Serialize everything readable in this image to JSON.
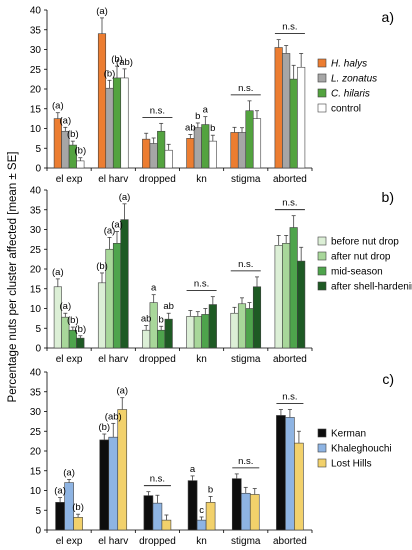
{
  "figure": {
    "ylabel": "Percentage nuts per cluster affected [mean ± SE]"
  },
  "chart_data": [
    {
      "panel_label": "a)",
      "type": "bar",
      "categories": [
        "el exp",
        "el harv",
        "dropped",
        "kn",
        "stigma",
        "aborted"
      ],
      "ylim": [
        0,
        40
      ],
      "yticks": [
        0,
        5,
        10,
        15,
        20,
        25,
        30,
        35,
        40
      ],
      "legend_position": "right",
      "series": [
        {
          "name": "H. halys",
          "italic": true,
          "color": "#ec7d31",
          "values": [
            12.5,
            34,
            7.3,
            7.5,
            9,
            30.5
          ],
          "errors": [
            1.5,
            4,
            1.5,
            1.0,
            1.3,
            2.0
          ]
        },
        {
          "name": "L. zonatus",
          "italic": true,
          "color": "#a6a6a6",
          "values": [
            9.3,
            20.2,
            6.2,
            10.2,
            9,
            29
          ],
          "errors": [
            1.0,
            2.0,
            1.4,
            1.2,
            1.2,
            2.0
          ]
        },
        {
          "name": "C. hilaris",
          "italic": true,
          "color": "#53a33f",
          "values": [
            5.8,
            22.8,
            9.3,
            11,
            14.5,
            22.5
          ],
          "errors": [
            1.0,
            3.0,
            2.0,
            2.0,
            2.5,
            3.5
          ]
        },
        {
          "name": "control",
          "italic": false,
          "color": "#ffffff",
          "values": [
            1.8,
            22.8,
            4.5,
            6.8,
            12.5,
            25.5
          ],
          "errors": [
            0.8,
            2.3,
            1.5,
            1.5,
            2.0,
            3.5
          ]
        }
      ],
      "annotations": [
        {
          "text": "(a)",
          "category": 0,
          "bar": 0,
          "color": "#000000"
        },
        {
          "text": "(a)",
          "category": 0,
          "bar": 1,
          "color": "#000000"
        },
        {
          "text": "(b)",
          "category": 0,
          "bar": 2,
          "color": "#000000"
        },
        {
          "text": "(b)",
          "category": 0,
          "bar": 3,
          "color": "#000000"
        },
        {
          "text": "(a)",
          "category": 1,
          "bar": 0,
          "color": "#000000"
        },
        {
          "text": "(b)",
          "category": 1,
          "bar": 1,
          "color": "#000000"
        },
        {
          "text": "(b)",
          "category": 1,
          "bar": 2,
          "color": "#000000"
        },
        {
          "text": "(ab)",
          "category": 1,
          "bar": 3,
          "color": "#000000"
        },
        {
          "text": "ab",
          "category": 3,
          "bar": 0,
          "color": "#000000"
        },
        {
          "text": "b",
          "category": 3,
          "bar": 1,
          "color": "#000000"
        },
        {
          "text": "a",
          "category": 3,
          "bar": 2,
          "color": "#000000"
        },
        {
          "text": "b",
          "category": 3,
          "bar": 3,
          "color": "#000000"
        }
      ],
      "ns_groups": [
        2,
        4,
        5
      ],
      "ns_text": "n.s."
    },
    {
      "panel_label": "b)",
      "type": "bar",
      "categories": [
        "el exp",
        "el harv",
        "dropped",
        "kn",
        "stigma",
        "aborted"
      ],
      "ylim": [
        0,
        40
      ],
      "yticks": [
        0,
        5,
        10,
        15,
        20,
        25,
        30,
        35,
        40
      ],
      "legend_position": "right",
      "series": [
        {
          "name": "before nut drop",
          "italic": false,
          "color": "#dcefd6",
          "values": [
            15.5,
            16.5,
            4.5,
            8,
            8.8,
            26
          ],
          "errors": [
            2.0,
            2.5,
            1.2,
            1.5,
            1.5,
            2.5
          ]
        },
        {
          "name": "after nut drop",
          "italic": false,
          "color": "#a8d79a",
          "values": [
            7.8,
            25,
            11.5,
            8,
            11.2,
            26.5
          ],
          "errors": [
            1.0,
            3.0,
            2.0,
            1.2,
            1.5,
            2.0
          ]
        },
        {
          "name": "mid-season",
          "italic": false,
          "color": "#4ea44c",
          "values": [
            4.5,
            26.5,
            4.5,
            8.5,
            10,
            30.5
          ],
          "errors": [
            0.8,
            3.0,
            1.0,
            1.5,
            1.5,
            3.0
          ]
        },
        {
          "name": "after shell-hardening",
          "italic": false,
          "color": "#1e5a24",
          "values": [
            2.5,
            32.5,
            7.3,
            11,
            15.5,
            22
          ],
          "errors": [
            0.6,
            4.0,
            1.5,
            2.0,
            2.5,
            3.5
          ]
        }
      ],
      "annotations": [
        {
          "text": "(a)",
          "category": 0,
          "bar": 0,
          "color": "#7f7f7f"
        },
        {
          "text": "(a)",
          "category": 0,
          "bar": 1,
          "color": "#000000"
        },
        {
          "text": "(b)",
          "category": 0,
          "bar": 2,
          "color": "#000000"
        },
        {
          "text": "(b)",
          "category": 0,
          "bar": 3,
          "color": "#000000"
        },
        {
          "text": "(b)",
          "category": 1,
          "bar": 0,
          "color": "#7f7f7f"
        },
        {
          "text": "(a)",
          "category": 1,
          "bar": 1,
          "color": "#000000"
        },
        {
          "text": "(a)",
          "category": 1,
          "bar": 2,
          "color": "#000000"
        },
        {
          "text": "(a)",
          "category": 1,
          "bar": 3,
          "color": "#000000"
        },
        {
          "text": "ab",
          "category": 2,
          "bar": 0,
          "color": "#000000"
        },
        {
          "text": "a",
          "category": 2,
          "bar": 1,
          "color": "#000000"
        },
        {
          "text": "b",
          "category": 2,
          "bar": 2,
          "color": "#000000"
        },
        {
          "text": "ab",
          "category": 2,
          "bar": 3,
          "color": "#000000"
        }
      ],
      "ns_groups": [
        3,
        4,
        5
      ],
      "ns_text": "n.s."
    },
    {
      "panel_label": "c)",
      "type": "bar",
      "categories": [
        "el exp",
        "el harv",
        "dropped",
        "kn",
        "stigma",
        "aborted"
      ],
      "ylim": [
        0,
        40
      ],
      "yticks": [
        0,
        5,
        10,
        15,
        20,
        25,
        30,
        35,
        40
      ],
      "legend_position": "right",
      "series": [
        {
          "name": "Kerman",
          "italic": false,
          "color": "#0d0d0d",
          "values": [
            7,
            22.8,
            8.7,
            12.5,
            13,
            29
          ],
          "errors": [
            1.2,
            1.5,
            1.0,
            1.2,
            1.2,
            1.5
          ]
        },
        {
          "name": "Khaleghouchi",
          "italic": false,
          "color": "#8eb4e3",
          "values": [
            12,
            23.5,
            6.8,
            2.5,
            9.3,
            28.5
          ],
          "errors": [
            0.8,
            3.5,
            2.0,
            0.8,
            1.5,
            2.0
          ]
        },
        {
          "name": "Lost Hills",
          "italic": false,
          "color": "#f2d16b",
          "values": [
            3.2,
            30.5,
            2.5,
            7,
            9,
            22
          ],
          "errors": [
            0.8,
            3.0,
            1.3,
            1.5,
            1.5,
            3.0
          ]
        }
      ],
      "annotations": [
        {
          "text": "(a)",
          "category": 0,
          "bar": 0,
          "color": "#000000"
        },
        {
          "text": "(a)",
          "category": 0,
          "bar": 1,
          "color": "#000000"
        },
        {
          "text": "(b)",
          "category": 0,
          "bar": 2,
          "color": "#000000"
        },
        {
          "text": "(b)",
          "category": 1,
          "bar": 0,
          "color": "#000000"
        },
        {
          "text": "(ab)",
          "category": 1,
          "bar": 1,
          "color": "#000000"
        },
        {
          "text": "(a)",
          "category": 1,
          "bar": 2,
          "color": "#000000"
        },
        {
          "text": "a",
          "category": 3,
          "bar": 0,
          "color": "#000000"
        },
        {
          "text": "c",
          "category": 3,
          "bar": 1,
          "color": "#000000"
        },
        {
          "text": "b",
          "category": 3,
          "bar": 2,
          "color": "#000000"
        }
      ],
      "ns_groups": [
        2,
        4,
        5
      ],
      "ns_text": "n.s."
    }
  ]
}
